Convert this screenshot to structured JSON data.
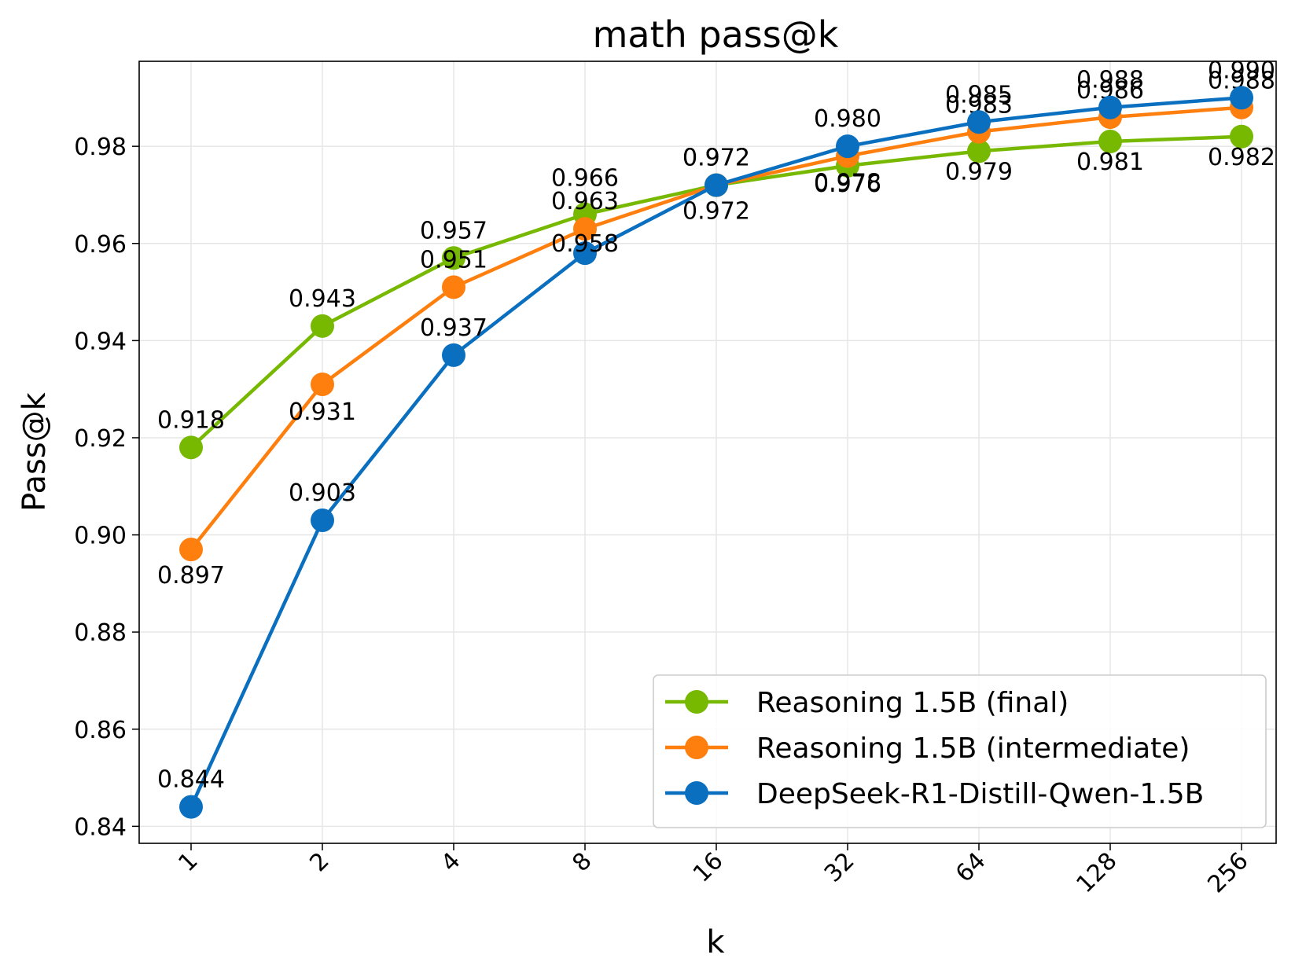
{
  "chart_data": {
    "type": "line",
    "title": "math pass@k",
    "xlabel": "k",
    "ylabel": "Pass@k",
    "categories": [
      "1",
      "2",
      "4",
      "8",
      "16",
      "32",
      "64",
      "128",
      "256"
    ],
    "ylim": [
      0.8365,
      0.9975
    ],
    "yticks": [
      "0.84",
      "0.86",
      "0.88",
      "0.90",
      "0.92",
      "0.94",
      "0.96",
      "0.98"
    ],
    "grid": true,
    "legend_position": "lower-right",
    "series": [
      {
        "name": "Reasoning 1.5B (final)",
        "color": "#76b900",
        "values": [
          0.918,
          0.943,
          0.957,
          0.966,
          0.972,
          0.976,
          0.979,
          0.981,
          0.982
        ],
        "labels": [
          "0.918",
          "0.943",
          "0.957",
          "0.966",
          "0.972",
          "0.976",
          "0.979",
          "0.981",
          "0.982"
        ]
      },
      {
        "name": "Reasoning 1.5B (intermediate)",
        "color": "#ff7f0e",
        "values": [
          0.897,
          0.931,
          0.951,
          0.963,
          0.972,
          0.978,
          0.983,
          0.986,
          0.988
        ],
        "labels": [
          "0.897",
          "0.931",
          "0.951",
          "0.963",
          "0.972",
          "0.978",
          "0.983",
          "0.986",
          "0.988"
        ]
      },
      {
        "name": "DeepSeek-R1-Distill-Qwen-1.5B",
        "color": "#0a6fbf",
        "values": [
          0.844,
          0.903,
          0.937,
          0.958,
          0.972,
          0.98,
          0.985,
          0.988,
          0.99
        ],
        "labels": [
          "0.844",
          "0.903",
          "0.937",
          "0.958",
          "0.972",
          "0.980",
          "0.985",
          "0.988",
          "0.990"
        ]
      }
    ]
  }
}
